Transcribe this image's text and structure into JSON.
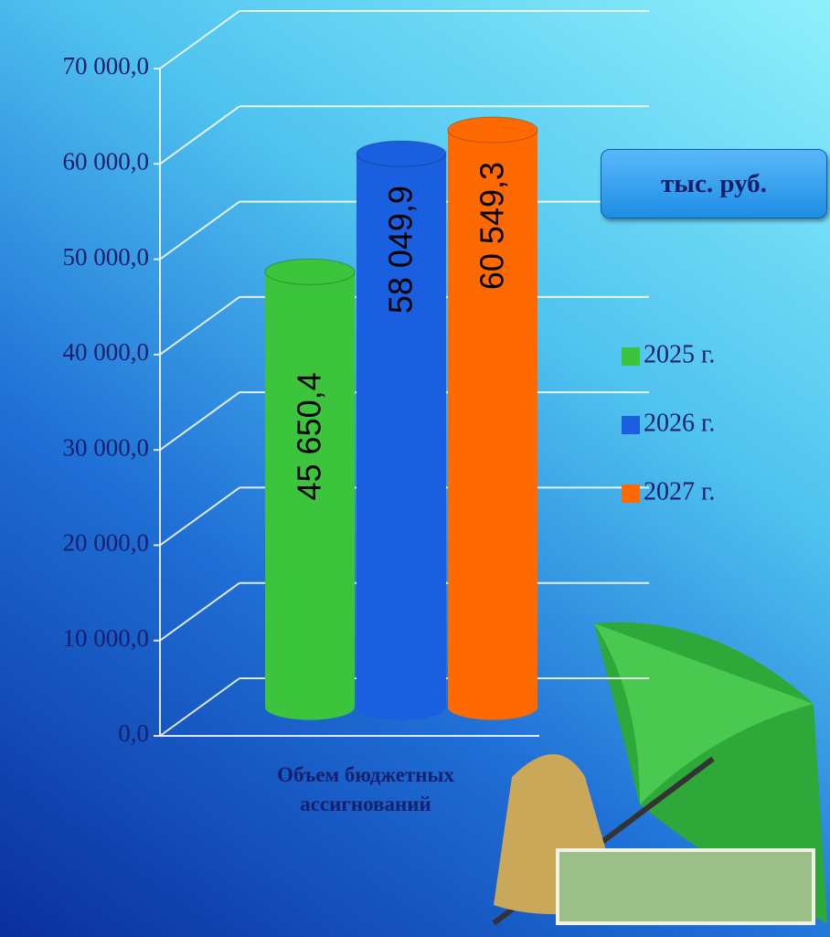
{
  "chart_data": {
    "type": "cylinder-bar",
    "categories": [
      "Объем бюджетных ассигнований"
    ],
    "series": [
      {
        "name": "2025 г.",
        "color": "#3cc43c",
        "values": [
          45650.4
        ],
        "value_labels": [
          "45 650,4"
        ]
      },
      {
        "name": "2026 г.",
        "color": "#1a5fe0",
        "values": [
          58049.9
        ],
        "value_labels": [
          "58 049,9"
        ]
      },
      {
        "name": "2027 г.",
        "color": "#ff6a00",
        "values": [
          60549.3
        ],
        "value_labels": [
          "60 549,3"
        ]
      }
    ],
    "ylim": [
      0,
      70000
    ],
    "yticks": [
      {
        "value": 0,
        "label": "0,0"
      },
      {
        "value": 10000,
        "label": "10 000,0"
      },
      {
        "value": 20000,
        "label": "20 000,0"
      },
      {
        "value": 30000,
        "label": "30 000,0"
      },
      {
        "value": 40000,
        "label": "40 000,0"
      },
      {
        "value": 50000,
        "label": "50 000,0"
      },
      {
        "value": 60000,
        "label": "60 000,0"
      },
      {
        "value": 70000,
        "label": "70 000,0"
      }
    ],
    "grid": true,
    "legend": "right",
    "annotation": "тыс. руб."
  }
}
